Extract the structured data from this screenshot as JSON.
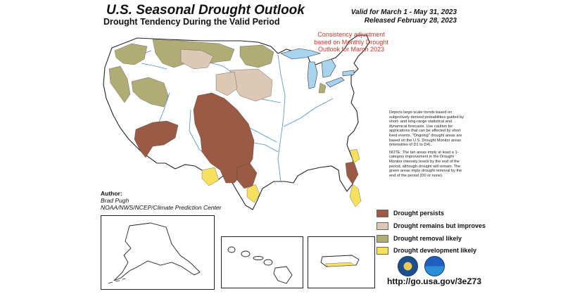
{
  "header": {
    "title": "U.S. Seasonal Drought Outlook",
    "subtitle": "Drought Tendency During the Valid Period",
    "valid": "Valid for March 1 - May 31, 2023",
    "released": "Released February 28, 2023"
  },
  "consistency_note": "Consistency adjustment based on Monthly Drought Outlook for March 2023",
  "notes": {
    "depicts": "Depicts large-scale trends based on subjectively derived probabilities guided by short- and long-range statistical and dynamical forecasts. Use caution for applications that can be affected by short lived events. \"Ongoing\" drought areas are based on the U.S. Drought Monitor areas (intensities of D1 to D4).",
    "note": "NOTE: The tan areas imply at least a 1-category improvement in the Drought Monitor intensity levels by the end of the period, although drought will remain. The green areas imply drought removal by the end of the period (D0 or none)."
  },
  "author": {
    "label": "Author:",
    "name": "Brad Pugh",
    "org": "NOAA/NWS/NCEP/Climate Prediction Center"
  },
  "legend": [
    {
      "label": "Drought persists",
      "color": "#9b5a44"
    },
    {
      "label": "Drought remains but improves",
      "color": "#dcc8b4"
    },
    {
      "label": "Drought removal likely",
      "color": "#b0ad74"
    },
    {
      "label": "Drought development likely",
      "color": "#f7e15c"
    }
  ],
  "url": "http://go.usa.gov/3eZ73",
  "colors": {
    "persists": "#9b5a44",
    "improves": "#dcc8b4",
    "removal": "#b0ad74",
    "development": "#f7e15c",
    "water": "#a7d3ee",
    "river": "#4a90c8"
  },
  "logos": [
    "dept-of-commerce-seal-icon",
    "noaa-logo-icon"
  ]
}
